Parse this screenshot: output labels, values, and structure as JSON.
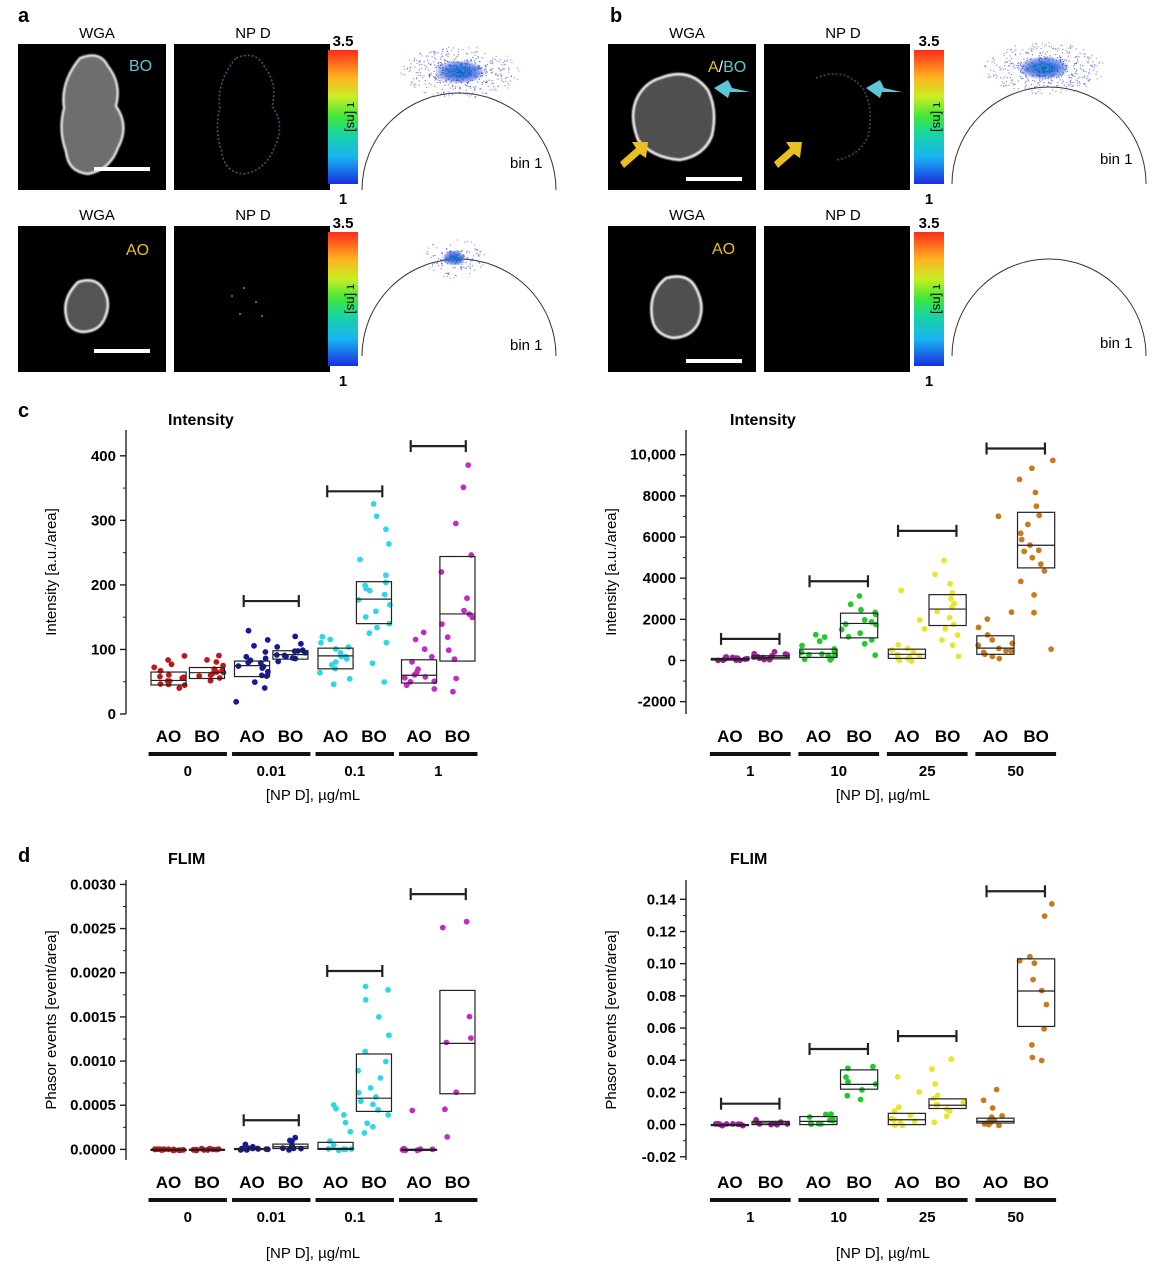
{
  "panel_letters": [
    "a",
    "b",
    "c",
    "d"
  ],
  "microscopy": {
    "panels": [
      {
        "letter": "a",
        "rows": [
          {
            "left_label": "WGA",
            "right_label": "NP D",
            "tag": "BO",
            "tag_color": "#5ec8d8",
            "colorbar_max": "3.5",
            "colorbar_min": "1",
            "colorbar_label": "τ [ns]",
            "bin_label": "bin 1",
            "phasor_density": "high",
            "arrows": false,
            "cell_size": "large"
          },
          {
            "left_label": "WGA",
            "right_label": "NP D",
            "tag": "AO",
            "tag_color": "#e8c020",
            "colorbar_max": "3.5",
            "colorbar_min": "1",
            "colorbar_label": "τ [ns]",
            "bin_label": "bin 1",
            "phasor_density": "low",
            "arrows": false,
            "cell_size": "small"
          }
        ]
      },
      {
        "letter": "b",
        "rows": [
          {
            "left_label": "WGA",
            "right_label": "NP D",
            "tag_parts": [
              "A",
              "/",
              "BO"
            ],
            "tag_part_colors": [
              "#e8c020",
              "#ffffff",
              "#5ec8d8"
            ],
            "colorbar_max": "3.5",
            "colorbar_min": "1",
            "colorbar_label": "τ [ns]",
            "bin_label": "bin 1",
            "phasor_density": "high",
            "arrows": true,
            "cell_size": "round"
          },
          {
            "left_label": "WGA",
            "right_label": "NP D",
            "tag": "AO",
            "tag_color": "#e8c020",
            "colorbar_max": "3.5",
            "colorbar_min": "1",
            "colorbar_label": "τ [ns]",
            "bin_label": "bin 1",
            "phasor_density": "none",
            "arrows": false,
            "cell_size": "medium"
          }
        ]
      }
    ]
  },
  "chart_data": [
    {
      "id": "c-left",
      "type": "scatter",
      "title": "Intensity",
      "ylabel": "Intensity [a.u./area]",
      "xlabel": "[NP D], µg/mL",
      "ylim": [
        0,
        440
      ],
      "yticks": [
        0,
        100,
        200,
        300,
        400
      ],
      "ytick_labels": [
        "0",
        "100",
        "200",
        "300",
        "400"
      ],
      "group_labels": [
        "AO",
        "BO"
      ],
      "concentrations": [
        "0",
        "0.01",
        "0.1",
        "1"
      ],
      "series": [
        {
          "name": "AO",
          "concentration": "0",
          "color": "#c0161b",
          "q1": 45,
          "median": 52,
          "q3": 65,
          "points": [
            40,
            45,
            48,
            50,
            52,
            55,
            58,
            62,
            68,
            72,
            78,
            85,
            90,
            44,
            56
          ]
        },
        {
          "name": "BO",
          "concentration": "0",
          "color": "#c0161b",
          "q1": 55,
          "median": 64,
          "q3": 72,
          "points": [
            50,
            55,
            58,
            62,
            64,
            66,
            68,
            70,
            75,
            80,
            85,
            90,
            60
          ]
        },
        {
          "name": "AO",
          "concentration": "0.01",
          "color": "#17179a",
          "q1": 58,
          "median": 75,
          "q3": 82,
          "points": [
            20,
            40,
            50,
            58,
            65,
            70,
            75,
            78,
            80,
            82,
            85,
            95,
            105,
            115,
            130,
            60,
            72,
            88
          ]
        },
        {
          "name": "BO",
          "concentration": "0.01",
          "color": "#17179a",
          "q1": 85,
          "median": 92,
          "q3": 98,
          "points": [
            80,
            85,
            88,
            90,
            92,
            94,
            96,
            98,
            100,
            105,
            110,
            120,
            87
          ]
        },
        {
          "name": "AO",
          "concentration": "0.1",
          "color": "#2ed6e8",
          "q1": 70,
          "median": 90,
          "q3": 102,
          "points": [
            45,
            55,
            65,
            70,
            80,
            85,
            88,
            90,
            95,
            100,
            105,
            110,
            115,
            120,
            75
          ]
        },
        {
          "name": "BO",
          "concentration": "0.1",
          "color": "#2ed6e8",
          "q1": 140,
          "median": 178,
          "q3": 205,
          "points": [
            50,
            80,
            110,
            125,
            140,
            150,
            160,
            170,
            178,
            185,
            190,
            200,
            205,
            215,
            240,
            265,
            285,
            305,
            325,
            135,
            195
          ]
        },
        {
          "name": "AO",
          "concentration": "1",
          "color": "#c42ac4",
          "q1": 48,
          "median": 60,
          "q3": 84,
          "points": [
            40,
            45,
            50,
            55,
            58,
            60,
            65,
            70,
            80,
            90,
            100,
            115,
            125,
            52
          ]
        },
        {
          "name": "BO",
          "concentration": "1",
          "color": "#c42ac4",
          "q1": 82,
          "median": 155,
          "q3": 244,
          "points": [
            35,
            55,
            85,
            100,
            120,
            140,
            150,
            155,
            160,
            180,
            220,
            245,
            295,
            385,
            352
          ]
        }
      ],
      "brackets": [
        {
          "concentration": "0.01",
          "y": 175
        },
        {
          "concentration": "0.1",
          "y": 345
        },
        {
          "concentration": "1",
          "y": 415
        }
      ]
    },
    {
      "id": "c-right",
      "type": "scatter",
      "title": "Intensity",
      "ylabel": "Intensity [a.u./area]",
      "xlabel": "[NP D], µg/mL",
      "ylim": [
        -2600,
        11200
      ],
      "yticks": [
        -2000,
        0,
        2000,
        4000,
        6000,
        8000,
        10000
      ],
      "ytick_labels": [
        "-2000",
        "0",
        "2000",
        "4000",
        "6000",
        "8000",
        "10,000"
      ],
      "group_labels": [
        "AO",
        "BO"
      ],
      "concentrations": [
        "1",
        "10",
        "25",
        "50"
      ],
      "series": [
        {
          "name": "AO",
          "concentration": "1",
          "color": "#a31ea3",
          "q1": 20,
          "median": 60,
          "q3": 100,
          "points": [
            0,
            20,
            40,
            50,
            60,
            70,
            80,
            100,
            120,
            150,
            180,
            30
          ]
        },
        {
          "name": "BO",
          "concentration": "1",
          "color": "#a31ea3",
          "q1": 80,
          "median": 150,
          "q3": 230,
          "points": [
            30,
            60,
            100,
            120,
            150,
            180,
            200,
            250,
            300,
            350,
            400,
            220
          ]
        },
        {
          "name": "AO",
          "concentration": "10",
          "color": "#23c72e",
          "q1": 150,
          "median": 350,
          "q3": 550,
          "points": [
            0,
            100,
            150,
            200,
            300,
            350,
            400,
            500,
            600,
            700,
            900,
            1100,
            1300,
            250
          ]
        },
        {
          "name": "BO",
          "concentration": "10",
          "color": "#23c72e",
          "q1": 1100,
          "median": 1800,
          "q3": 2300,
          "points": [
            300,
            800,
            1000,
            1300,
            1500,
            1700,
            1800,
            2000,
            2200,
            2300,
            2500,
            2700,
            3100,
            1200,
            1900
          ]
        },
        {
          "name": "AO",
          "concentration": "25",
          "color": "#e8e626",
          "q1": 100,
          "median": 300,
          "q3": 550,
          "points": [
            0,
            50,
            100,
            150,
            200,
            300,
            400,
            500,
            600,
            800,
            1500,
            2000,
            3400,
            250
          ]
        },
        {
          "name": "BO",
          "concentration": "25",
          "color": "#e8e626",
          "q1": 1700,
          "median": 2500,
          "q3": 3200,
          "points": [
            200,
            700,
            1200,
            1500,
            1800,
            2100,
            2400,
            2600,
            2800,
            3000,
            3300,
            3700,
            4200,
            4900,
            1000
          ]
        },
        {
          "name": "AO",
          "concentration": "50",
          "color": "#c87a1e",
          "q1": 300,
          "median": 600,
          "q3": 1200,
          "points": [
            100,
            200,
            300,
            400,
            500,
            600,
            700,
            800,
            1000,
            1200,
            1600,
            2000,
            2300,
            7000,
            450
          ]
        },
        {
          "name": "BO",
          "concentration": "50",
          "color": "#c87a1e",
          "q1": 4500,
          "median": 5600,
          "q3": 7200,
          "points": [
            500,
            2300,
            3200,
            3800,
            4300,
            4700,
            5000,
            5300,
            5600,
            5900,
            6200,
            6600,
            7000,
            7500,
            8200,
            8800,
            9300,
            9700,
            5400
          ]
        }
      ],
      "brackets": [
        {
          "concentration": "1",
          "y": 1050
        },
        {
          "concentration": "10",
          "y": 3850
        },
        {
          "concentration": "25",
          "y": 6300
        },
        {
          "concentration": "50",
          "y": 10300
        }
      ]
    },
    {
      "id": "d-left",
      "type": "scatter",
      "title": "FLIM",
      "ylabel": "Phasor events [event/area]",
      "xlabel": "[NP D], µg/mL",
      "ylim": [
        -0.00012,
        0.00305
      ],
      "yticks": [
        0,
        0.0005,
        0.001,
        0.0015,
        0.002,
        0.0025,
        0.003
      ],
      "ytick_labels": [
        "0.0000",
        "0.0005",
        "0.0010",
        "0.0015",
        "0.0020",
        "0.0025",
        "0.0030"
      ],
      "group_labels": [
        "AO",
        "BO"
      ],
      "concentrations": [
        "0",
        "0.01",
        "0.1",
        "1"
      ],
      "series": [
        {
          "name": "AO",
          "concentration": "0",
          "color": "#c0161b",
          "q1": 0,
          "median": 0,
          "q3": 0,
          "points": [
            0,
            0,
            0,
            0,
            0,
            0,
            0,
            0,
            0,
            0,
            0,
            0,
            0,
            0
          ]
        },
        {
          "name": "BO",
          "concentration": "0",
          "color": "#c0161b",
          "q1": 0,
          "median": 0,
          "q3": 0,
          "points": [
            0,
            0,
            0,
            0,
            0,
            0,
            0,
            0,
            0,
            0,
            0,
            0
          ]
        },
        {
          "name": "AO",
          "concentration": "0.01",
          "color": "#17179a",
          "q1": 0,
          "median": 0,
          "q3": 1e-05,
          "points": [
            0,
            0,
            0,
            0,
            0,
            0,
            0,
            0,
            2e-05,
            3e-05,
            5e-05,
            0
          ]
        },
        {
          "name": "BO",
          "concentration": "0.01",
          "color": "#17179a",
          "q1": 1e-05,
          "median": 3e-05,
          "q3": 6e-05,
          "points": [
            0,
            0,
            2e-05,
            3e-05,
            5e-05,
            8e-05,
            0.0001,
            0.00013,
            0
          ]
        },
        {
          "name": "AO",
          "concentration": "0.1",
          "color": "#2ed6e8",
          "q1": 0,
          "median": 1e-05,
          "q3": 8e-05,
          "points": [
            0,
            0,
            0,
            0,
            5e-05,
            0.0001,
            0.0002,
            0.0003,
            0.0004,
            0.00045,
            0.0005,
            0
          ]
        },
        {
          "name": "BO",
          "concentration": "0.1",
          "color": "#2ed6e8",
          "q1": 0.00043,
          "median": 0.00058,
          "q3": 0.00108,
          "points": [
            0.00018,
            0.00025,
            0.0003,
            0.0004,
            0.00045,
            0.0005,
            0.00055,
            0.0006,
            0.0007,
            0.0008,
            0.0009,
            0.001,
            0.0011,
            0.0013,
            0.0015,
            0.0017,
            0.0018,
            0.00185,
            0.00065
          ]
        },
        {
          "name": "AO",
          "concentration": "1",
          "color": "#c42ac4",
          "q1": 0,
          "median": 0,
          "q3": 0,
          "points": [
            0,
            0,
            0,
            0,
            0,
            0,
            0,
            0,
            0.00045,
            0
          ]
        },
        {
          "name": "BO",
          "concentration": "1",
          "color": "#c42ac4",
          "q1": 0.00063,
          "median": 0.0012,
          "q3": 0.0018,
          "points": [
            0.00015,
            0.00045,
            0.00065,
            0.0012,
            0.00125,
            0.0015,
            0.0025,
            0.00257
          ]
        }
      ],
      "brackets": [
        {
          "concentration": "0.01",
          "y": 0.00033
        },
        {
          "concentration": "0.1",
          "y": 0.00202
        },
        {
          "concentration": "1",
          "y": 0.00289
        }
      ]
    },
    {
      "id": "d-right",
      "type": "scatter",
      "title": "FLIM",
      "ylabel": "Phasor events [event/area]",
      "xlabel": "[NP D], µg/mL",
      "ylim": [
        -0.022,
        0.152
      ],
      "yticks": [
        -0.02,
        0,
        0.02,
        0.04,
        0.06,
        0.08,
        0.1,
        0.12,
        0.14
      ],
      "ytick_labels": [
        "-0.02",
        "0.00",
        "0.02",
        "0.04",
        "0.06",
        "0.08",
        "0.10",
        "0.12",
        "0.14"
      ],
      "group_labels": [
        "AO",
        "BO"
      ],
      "concentrations": [
        "1",
        "10",
        "25",
        "50"
      ],
      "series": [
        {
          "name": "AO",
          "concentration": "1",
          "color": "#a31ea3",
          "q1": 0,
          "median": 0,
          "q3": 0,
          "points": [
            0,
            0,
            0,
            0,
            0,
            0,
            0,
            0,
            0,
            0
          ]
        },
        {
          "name": "BO",
          "concentration": "1",
          "color": "#a31ea3",
          "q1": 0,
          "median": 0.001,
          "q3": 0.002,
          "points": [
            0,
            0,
            0.0005,
            0.001,
            0.001,
            0.0015,
            0.002,
            0.0025
          ]
        },
        {
          "name": "AO",
          "concentration": "10",
          "color": "#23c72e",
          "q1": 0,
          "median": 0.002,
          "q3": 0.005,
          "points": [
            0,
            0,
            0.001,
            0.002,
            0.003,
            0.004,
            0.005,
            0.006,
            0.007,
            0.0015
          ]
        },
        {
          "name": "BO",
          "concentration": "10",
          "color": "#23c72e",
          "q1": 0.022,
          "median": 0.025,
          "q3": 0.034,
          "points": [
            0.015,
            0.018,
            0.022,
            0.025,
            0.03,
            0.035,
            0.036,
            0.027
          ]
        },
        {
          "name": "AO",
          "concentration": "25",
          "color": "#e8e626",
          "q1": 0,
          "median": 0.003,
          "q3": 0.007,
          "points": [
            0,
            0,
            0.001,
            0.002,
            0.004,
            0.006,
            0.008,
            0.011,
            0.02,
            0.03,
            0.003
          ]
        },
        {
          "name": "BO",
          "concentration": "25",
          "color": "#e8e626",
          "q1": 0.01,
          "median": 0.012,
          "q3": 0.016,
          "points": [
            0.002,
            0.005,
            0.008,
            0.01,
            0.012,
            0.014,
            0.016,
            0.018,
            0.025,
            0.035,
            0.04,
            0.012
          ]
        },
        {
          "name": "AO",
          "concentration": "50",
          "color": "#c87a1e",
          "q1": 0.001,
          "median": 0.002,
          "q3": 0.004,
          "points": [
            0,
            0,
            0.001,
            0.002,
            0.003,
            0.004,
            0.006,
            0.01,
            0.015,
            0.022,
            0.001
          ]
        },
        {
          "name": "BO",
          "concentration": "50",
          "color": "#c87a1e",
          "q1": 0.061,
          "median": 0.083,
          "q3": 0.103,
          "points": [
            0.04,
            0.042,
            0.05,
            0.06,
            0.075,
            0.083,
            0.09,
            0.1,
            0.102,
            0.104,
            0.13,
            0.137
          ]
        }
      ],
      "brackets": [
        {
          "concentration": "1",
          "y": 0.013
        },
        {
          "concentration": "10",
          "y": 0.047
        },
        {
          "concentration": "25",
          "y": 0.055
        },
        {
          "concentration": "50",
          "y": 0.145
        }
      ]
    }
  ]
}
